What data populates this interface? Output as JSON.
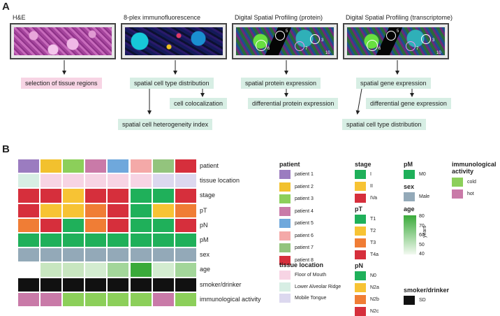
{
  "panel_a": {
    "letter": "A",
    "titles": [
      "H&E",
      "8-plex immunofluorescence",
      "Digital Spatial Profiling (protein)",
      "Digital Spatial Profiling (transcriptome)"
    ],
    "roi_numbers": {
      "protein": [
        "5",
        "6",
        "7",
        "3",
        "10"
      ],
      "transcriptome": [
        "5",
        "6",
        "7",
        "3",
        "10"
      ]
    },
    "col1": {
      "box1": "selection of tissue regions"
    },
    "col2": {
      "box1": "spatial cell type distribution",
      "box2": "cell colocalization",
      "box3": "spatial cell heterogeneity index"
    },
    "col3": {
      "box1": "spatial protein expression",
      "box2": "differential protein expression"
    },
    "col4": {
      "box1": "spatial gene expression",
      "box2": "differential gene expression",
      "box3": "spatial cell type distribution"
    }
  },
  "panel_b": {
    "letter": "B",
    "row_labels": [
      "patient",
      "tissue location",
      "stage",
      "pT",
      "pN",
      "pM",
      "sex",
      "age",
      "smoker/drinker",
      "immunological activity"
    ],
    "heatmap": [
      [
        "#9b7cc0",
        "#f2c12e",
        "#8ccf5a",
        "#c97aa8",
        "#6fa8dc",
        "#f4a9a8",
        "#93c47d",
        "#d62f3c"
      ],
      [
        "#d7eee4",
        "#f7d4e4",
        "#f7d4e4",
        "#f7d4e4",
        "#f7d4e4",
        "#f7d4e4",
        "#dcd8ef",
        "#dcd8ef"
      ],
      [
        "#d62f3c",
        "#d62f3c",
        "#f7c334",
        "#d62f3c",
        "#d62f3c",
        "#1fb05a",
        "#1fb05a",
        "#d62f3c"
      ],
      [
        "#d62f3c",
        "#f7c334",
        "#f7c334",
        "#f07d35",
        "#d62f3c",
        "#1fb05a",
        "#f7c334",
        "#f07d35"
      ],
      [
        "#f07d35",
        "#d62f3c",
        "#1fb05a",
        "#f07d35",
        "#d62f3c",
        "#1fb05a",
        "#1fb05a",
        "#d62f3c"
      ],
      [
        "#1fb05a",
        "#1fb05a",
        "#1fb05a",
        "#1fb05a",
        "#1fb05a",
        "#1fb05a",
        "#1fb05a",
        "#1fb05a"
      ],
      [
        "#93a9b8",
        "#93a9b8",
        "#93a9b8",
        "#93a9b8",
        "#93a9b8",
        "#93a9b8",
        "#93a9b8",
        "#93a9b8"
      ],
      [
        "#ffffff",
        "#c8e6c0",
        "#c8e6c0",
        "#d3ecd0",
        "#a3d69a",
        "#3aaa3a",
        "#d3ecd0",
        "#a3d69a"
      ],
      [
        "#111111",
        "#111111",
        "#111111",
        "#111111",
        "#111111",
        "#111111",
        "#111111",
        "#111111"
      ],
      [
        "#c97aa8",
        "#c97aa8",
        "#8ccf5a",
        "#8ccf5a",
        "#8ccf5a",
        "#8ccf5a",
        "#c97aa8",
        "#8ccf5a"
      ]
    ],
    "legends": {
      "patient": {
        "title": "patient",
        "items": [
          {
            "label": "patient 1",
            "color": "#9b7cc0"
          },
          {
            "label": "patient 2",
            "color": "#f2c12e"
          },
          {
            "label": "patient 3",
            "color": "#8ccf5a"
          },
          {
            "label": "patient 4",
            "color": "#c97aa8"
          },
          {
            "label": "patient 5",
            "color": "#6fa8dc"
          },
          {
            "label": "patient 6",
            "color": "#f4a9a8"
          },
          {
            "label": "patient 7",
            "color": "#93c47d"
          },
          {
            "label": "patient 8",
            "color": "#d62f3c"
          }
        ]
      },
      "tissue": {
        "title": "tissue location",
        "items": [
          {
            "label": "Floor of Mouth",
            "color": "#f7d4e4"
          },
          {
            "label": "Lower Alveolar Ridge",
            "color": "#d7eee4"
          },
          {
            "label": "Mobile Tongue",
            "color": "#dcd8ef"
          }
        ]
      },
      "stage": {
        "title": "stage",
        "items": [
          {
            "label": "I",
            "color": "#1fb05a"
          },
          {
            "label": "II",
            "color": "#f7c334"
          },
          {
            "label": "IVa",
            "color": "#d62f3c"
          }
        ]
      },
      "pT": {
        "title": "pT",
        "items": [
          {
            "label": "T1",
            "color": "#1fb05a"
          },
          {
            "label": "T2",
            "color": "#f7c334"
          },
          {
            "label": "T3",
            "color": "#f07d35"
          },
          {
            "label": "T4a",
            "color": "#d62f3c"
          }
        ]
      },
      "pN": {
        "title": "pN",
        "items": [
          {
            "label": "N0",
            "color": "#1fb05a"
          },
          {
            "label": "N2a",
            "color": "#f7c334"
          },
          {
            "label": "N2b",
            "color": "#f07d35"
          },
          {
            "label": "N2c",
            "color": "#d62f3c"
          }
        ]
      },
      "pM": {
        "title": "pM",
        "items": [
          {
            "label": "M0",
            "color": "#1fb05a"
          }
        ]
      },
      "sex": {
        "title": "sex",
        "items": [
          {
            "label": "Male",
            "color": "#93a9b8"
          }
        ]
      },
      "age": {
        "title": "age",
        "ticks": [
          "80",
          "70",
          "60",
          "50",
          "40"
        ],
        "unit": "years",
        "color_high": "#3aaa3a",
        "color_low": "#f2f9f0"
      },
      "smoker": {
        "title": "smoker/drinker",
        "items": [
          {
            "label": "SD",
            "color": "#111111"
          }
        ]
      },
      "immuno": {
        "title": "immunological activity",
        "items": [
          {
            "label": "cold",
            "color": "#8ccf5a"
          },
          {
            "label": "hot",
            "color": "#c97aa8"
          }
        ]
      }
    }
  }
}
